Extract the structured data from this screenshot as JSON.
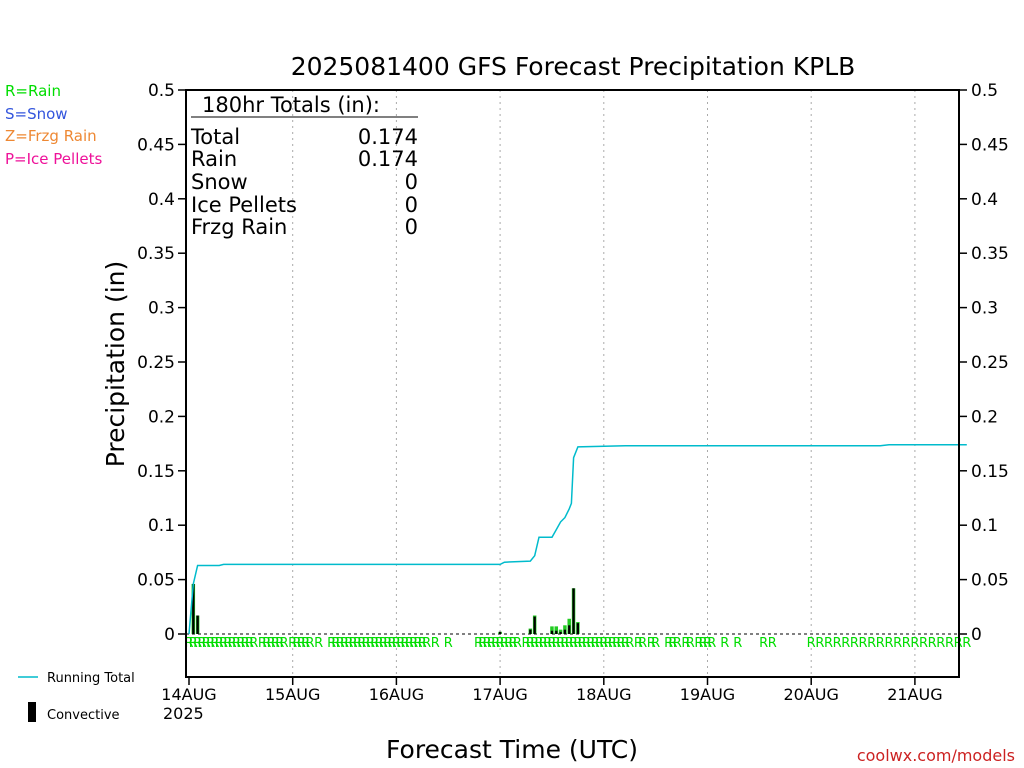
{
  "chart_data": {
    "type": "bar",
    "title": "2025081400 GFS Forecast Precipitation KPLB",
    "xlabel": "Forecast Time (UTC)",
    "ylabel": "Precipitation (in)",
    "ylim": [
      0,
      0.5
    ],
    "yticks": [
      "0",
      "0.05",
      "0.1",
      "0.15",
      "0.2",
      "0.25",
      "0.3",
      "0.35",
      "0.4",
      "0.45",
      "0.5"
    ],
    "x_unit": "forecast hour",
    "xlim": [
      0,
      180
    ],
    "xticks": [
      {
        "hour": 0,
        "label": "14AUG"
      },
      {
        "hour": 24,
        "label": "15AUG"
      },
      {
        "hour": 48,
        "label": "16AUG"
      },
      {
        "hour": 72,
        "label": "17AUG"
      },
      {
        "hour": 96,
        "label": "18AUG"
      },
      {
        "hour": 120,
        "label": "19AUG"
      },
      {
        "hour": 144,
        "label": "20AUG"
      },
      {
        "hour": 168,
        "label": "21AUG"
      }
    ],
    "year_label": "2025",
    "grid": true,
    "precip_type_legend": [
      {
        "label": "R=Rain",
        "color": "#00dd00"
      },
      {
        "label": "S=Snow",
        "color": "#3355dd"
      },
      {
        "label": "Z=Frzg Rain",
        "color": "#ee8833"
      },
      {
        "label": "P=Ice Pellets",
        "color": "#ee1199"
      }
    ],
    "series_legend": [
      {
        "label": "Running Total",
        "color": "#00bbcc"
      },
      {
        "label": "Convective",
        "color": "#000000"
      }
    ],
    "totals": {
      "header": "180hr Totals (in):",
      "rows": [
        {
          "label": "Total",
          "value": "0.174"
        },
        {
          "label": "Rain",
          "value": "0.174"
        },
        {
          "label": "Snow",
          "value": "0"
        },
        {
          "label": "Ice Pellets",
          "value": "0"
        },
        {
          "label": "Frzg Rain",
          "value": "0"
        }
      ]
    },
    "precip_bars": [
      {
        "hour": 1,
        "total": 0.046,
        "convective": 0.046
      },
      {
        "hour": 2,
        "total": 0.017,
        "convective": 0.017
      },
      {
        "hour": 72,
        "total": 0.002,
        "convective": 0.002
      },
      {
        "hour": 79,
        "total": 0.005,
        "convective": 0.004
      },
      {
        "hour": 80,
        "total": 0.017,
        "convective": 0.016
      },
      {
        "hour": 84,
        "total": 0.007,
        "convective": 0.003
      },
      {
        "hour": 85,
        "total": 0.007,
        "convective": 0.003
      },
      {
        "hour": 86,
        "total": 0.004,
        "convective": 0.002
      },
      {
        "hour": 87,
        "total": 0.008,
        "convective": 0.004
      },
      {
        "hour": 88,
        "total": 0.014,
        "convective": 0.008
      },
      {
        "hour": 89,
        "total": 0.042,
        "convective": 0.042
      },
      {
        "hour": 90,
        "total": 0.011,
        "convective": 0.01
      }
    ],
    "running_total": [
      [
        0,
        0.0
      ],
      [
        1,
        0.046
      ],
      [
        2,
        0.063
      ],
      [
        7,
        0.063
      ],
      [
        8,
        0.064
      ],
      [
        72,
        0.064
      ],
      [
        73,
        0.066
      ],
      [
        79,
        0.067
      ],
      [
        80,
        0.072
      ],
      [
        81,
        0.089
      ],
      [
        84,
        0.089
      ],
      [
        85,
        0.096
      ],
      [
        86,
        0.103
      ],
      [
        87,
        0.107
      ],
      [
        88,
        0.115
      ],
      [
        88.5,
        0.12
      ],
      [
        89,
        0.162
      ],
      [
        90,
        0.172
      ],
      [
        101,
        0.173
      ],
      [
        160,
        0.173
      ],
      [
        162,
        0.174
      ],
      [
        180,
        0.174
      ]
    ],
    "precip_type_hours": [
      0,
      1,
      2,
      3,
      4,
      5,
      6,
      7,
      8,
      9,
      10,
      11,
      12,
      13,
      14,
      15,
      17,
      18,
      19,
      20,
      21,
      22,
      24,
      25,
      26,
      27,
      28,
      30,
      33,
      34,
      35,
      36,
      37,
      38,
      39,
      40,
      41,
      42,
      43,
      44,
      45,
      46,
      47,
      48,
      49,
      50,
      51,
      52,
      53,
      54,
      55,
      57,
      60,
      67,
      68,
      69,
      70,
      71,
      72,
      73,
      74,
      75,
      76,
      78,
      79,
      80,
      81,
      82,
      83,
      84,
      85,
      86,
      87,
      88,
      89,
      90,
      91,
      92,
      93,
      94,
      95,
      96,
      97,
      98,
      99,
      100,
      101,
      102,
      104,
      105,
      107,
      108,
      111,
      112,
      113,
      115,
      116,
      118,
      119,
      120,
      121,
      124,
      127,
      133,
      135,
      144,
      146,
      148,
      150,
      152,
      154,
      156,
      158,
      160,
      162,
      164,
      166,
      168,
      170,
      172,
      174,
      176,
      178,
      180
    ],
    "precip_type_symbol": "R",
    "precip_type_color": "#00dd00"
  },
  "branding": {
    "credit": "coolwx.com/models"
  }
}
